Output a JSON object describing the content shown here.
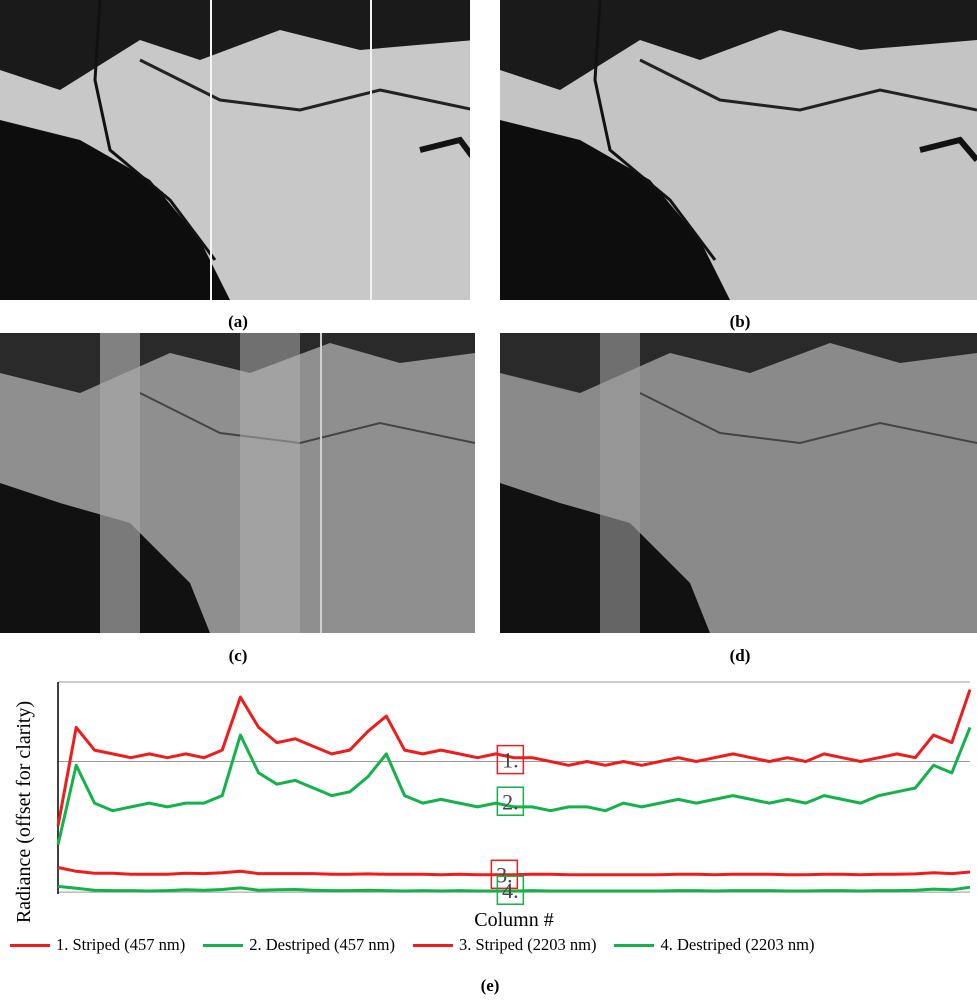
{
  "figure": {
    "captions": {
      "a": "(a)",
      "b": "(b)",
      "c": "(c)",
      "d": "(d)",
      "e": "(e)"
    }
  },
  "colors": {
    "striped": "#ee1c1c",
    "destriped": "#13b24a",
    "box_red": "#ee1c1c",
    "box_green": "#13b24a",
    "grid": "#999999"
  },
  "chart_data": {
    "type": "line",
    "title": "",
    "xlabel": "Column #",
    "ylabel": "Radiance (offset for clarity)",
    "x": [
      0,
      10,
      20,
      30,
      40,
      50,
      60,
      70,
      80,
      90,
      100,
      110,
      120,
      130,
      140,
      150,
      160,
      170,
      180,
      190,
      200,
      210,
      220,
      230,
      240,
      250,
      260,
      270,
      280,
      290,
      300,
      310,
      320,
      330,
      340,
      350,
      360,
      370,
      380,
      390,
      400,
      410,
      420,
      430,
      440,
      450,
      460,
      470,
      480,
      490,
      500
    ],
    "series": [
      {
        "name": "1. Striped (457 nm)",
        "values": [
          2.0,
          4.6,
          4.0,
          3.9,
          3.8,
          3.9,
          3.8,
          3.9,
          3.8,
          4.0,
          5.4,
          4.6,
          4.2,
          4.3,
          4.1,
          3.9,
          4.0,
          4.5,
          4.9,
          4.0,
          3.9,
          4.0,
          3.9,
          3.8,
          3.9,
          3.8,
          3.8,
          3.7,
          3.6,
          3.7,
          3.6,
          3.7,
          3.6,
          3.7,
          3.8,
          3.7,
          3.8,
          3.9,
          3.8,
          3.7,
          3.8,
          3.7,
          3.9,
          3.8,
          3.7,
          3.8,
          3.9,
          3.8,
          4.4,
          4.2,
          5.6
        ]
      },
      {
        "name": "2. Destriped (457 nm)",
        "values": [
          1.5,
          3.6,
          2.6,
          2.4,
          2.5,
          2.6,
          2.5,
          2.6,
          2.6,
          2.8,
          4.4,
          3.4,
          3.1,
          3.2,
          3.0,
          2.8,
          2.9,
          3.3,
          3.9,
          2.8,
          2.6,
          2.7,
          2.6,
          2.5,
          2.6,
          2.5,
          2.5,
          2.4,
          2.5,
          2.5,
          2.4,
          2.6,
          2.5,
          2.6,
          2.7,
          2.6,
          2.7,
          2.8,
          2.7,
          2.6,
          2.7,
          2.6,
          2.8,
          2.7,
          2.6,
          2.8,
          2.9,
          3.0,
          3.6,
          3.4,
          4.6
        ]
      },
      {
        "name": "3. Striped (2203 nm)",
        "values": [
          0.9,
          0.8,
          0.75,
          0.75,
          0.72,
          0.72,
          0.72,
          0.75,
          0.74,
          0.76,
          0.8,
          0.74,
          0.74,
          0.74,
          0.74,
          0.72,
          0.72,
          0.73,
          0.72,
          0.72,
          0.72,
          0.71,
          0.72,
          0.71,
          0.71,
          0.71,
          0.72,
          0.72,
          0.71,
          0.71,
          0.71,
          0.71,
          0.71,
          0.71,
          0.72,
          0.72,
          0.71,
          0.72,
          0.72,
          0.72,
          0.71,
          0.71,
          0.72,
          0.72,
          0.71,
          0.72,
          0.72,
          0.73,
          0.76,
          0.74,
          0.78
        ]
      },
      {
        "name": "4. Destriped (2203 nm)",
        "values": [
          0.4,
          0.35,
          0.3,
          0.29,
          0.29,
          0.28,
          0.29,
          0.31,
          0.3,
          0.32,
          0.36,
          0.3,
          0.31,
          0.32,
          0.3,
          0.29,
          0.29,
          0.3,
          0.29,
          0.28,
          0.29,
          0.28,
          0.29,
          0.28,
          0.28,
          0.28,
          0.29,
          0.28,
          0.28,
          0.28,
          0.28,
          0.28,
          0.28,
          0.28,
          0.29,
          0.29,
          0.28,
          0.29,
          0.29,
          0.29,
          0.28,
          0.28,
          0.29,
          0.29,
          0.28,
          0.29,
          0.29,
          0.3,
          0.33,
          0.31,
          0.38
        ]
      }
    ],
    "ylim": [
      0.2,
      5.8
    ],
    "grid": "horizontal",
    "annotations": [
      "1.",
      "2.",
      "3.",
      "4."
    ],
    "legend": [
      "1. Striped (457 nm)",
      "2. Destriped (457 nm)",
      "3. Striped (2203 nm)",
      "4. Destriped (2203 nm)"
    ],
    "legend_position": "bottom"
  }
}
